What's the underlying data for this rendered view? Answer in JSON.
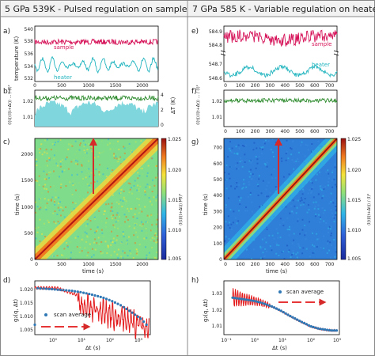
{
  "colors": {
    "sample": "#d6155a",
    "heater": "#23b5bf",
    "lineGreen": "#2e8b2e",
    "fillCyan": "#7fd6dc",
    "curve": "#e31a1c",
    "points": "#2f78b5",
    "arrow": "#d62a2a",
    "titleBg": "#f2f2f2",
    "axis": "#000000"
  },
  "columns": [
    {
      "title": "5 GPa 539K - Pulsed regulation on sample"
    },
    {
      "title": "7 GPa 585 K - Variable regulation on heater"
    }
  ],
  "panels": {
    "a": {
      "label": "a)",
      "ylabel": "temperature (K)",
      "xticks": [
        "0",
        "500",
        "1000",
        "1500",
        "2000"
      ],
      "yticks": [
        "532",
        "534",
        "536",
        "538",
        "540"
      ],
      "legend": [
        "sample",
        "heater"
      ]
    },
    "b": {
      "label": "b)",
      "ylabel_left": "⟨I(t)⟩⟨I(t+Δt)⟩ ... / ⟨I⟩²",
      "ylabel_right": "ΔT (K)",
      "yticks_left": [
        "1.01",
        "1.02"
      ],
      "yticks_right": [
        "0",
        "2",
        "4"
      ]
    },
    "c": {
      "label": "c)",
      "xlabel": "time (s)",
      "ylabel": "time (s)",
      "xticks": [
        "0",
        "500",
        "1000",
        "1500",
        "2000"
      ],
      "yticks": [
        "0",
        "500",
        "1000",
        "1500",
        "2000"
      ],
      "cbar_ticks": [
        "1.005",
        "1.010",
        "1.015",
        "1.020",
        "1.025"
      ],
      "cbar_label": "⟨I(t)I(t+Δt)⟩ / ⟨I⟩²"
    },
    "d": {
      "label": "d)",
      "xlabel": "Δt (s)",
      "ylabel": "g₂(q, Δt)",
      "yticks": [
        "1.005",
        "1.010",
        "1.015",
        "1.020"
      ],
      "xticks": [
        "10⁰",
        "10¹",
        "10²",
        "10³"
      ],
      "legend": "scan average"
    },
    "e": {
      "label": "e)",
      "yticks_top": [
        "584.8",
        "584.9"
      ],
      "yticks_bot": [
        "548.6",
        "548.7"
      ],
      "legend": [
        "sample",
        "heater"
      ],
      "xticks": [
        "0",
        "100",
        "200",
        "300",
        "400",
        "500",
        "600",
        "700"
      ]
    },
    "f": {
      "label": "f)",
      "ylabel": "⟨I(t)⟩⟨I(t+Δt)⟩ ... / ⟨I⟩²",
      "yticks": [
        "1.01",
        "1.02"
      ],
      "xticks": [
        "0",
        "100",
        "200",
        "300",
        "400",
        "500",
        "600",
        "700"
      ]
    },
    "g": {
      "label": "g)",
      "xlabel": "time (s)",
      "ylabel": "time (s)",
      "xticks": [
        "0",
        "100",
        "200",
        "300",
        "400",
        "500",
        "600",
        "700"
      ],
      "yticks": [
        "0",
        "100",
        "200",
        "300",
        "400",
        "500",
        "600",
        "700"
      ],
      "cbar_ticks": [
        "1.005",
        "1.010",
        "1.015",
        "1.020",
        "1.025"
      ],
      "cbar_label": "⟨I(t)I(t+Δt)⟩ / ⟨I⟩²"
    },
    "h": {
      "label": "h)",
      "xlabel": "Δt (s)",
      "ylabel": "g₂(q, Δt)",
      "yticks": [
        "1.01",
        "1.02",
        "1.03"
      ],
      "xticks": [
        "10⁻¹",
        "10⁰",
        "10¹",
        "10²",
        "10³"
      ],
      "legend": "scan average"
    }
  },
  "chart_data": [
    {
      "type": "line",
      "panel": "a",
      "xlim": [
        0,
        2300
      ],
      "ylim": [
        532,
        541
      ],
      "series": [
        {
          "name": "sample",
          "mean": 539.2,
          "amplitude": 0.6
        },
        {
          "name": "heater",
          "mean": 535.2,
          "amplitude": 1.6
        }
      ]
    },
    {
      "type": "area",
      "panel": "b",
      "xlim": [
        0,
        2300
      ],
      "ylim": [
        1.005,
        1.025
      ],
      "series": [
        {
          "name": "g2",
          "mean": 1.019
        },
        {
          "name": "ΔT",
          "ylim": [
            0,
            5
          ]
        }
      ]
    },
    {
      "type": "heatmap",
      "panel": "c",
      "xlim": [
        0,
        2300
      ],
      "ylim": [
        0,
        2300
      ],
      "clim": [
        1.005,
        1.025
      ],
      "arrow_at": 1300
    },
    {
      "type": "line",
      "panel": "d",
      "xscale": "log",
      "xlim": [
        0.3,
        2000
      ],
      "ylim": [
        1.004,
        1.023
      ],
      "series": [
        {
          "name": "scan average",
          "x": [
            0.3,
            0.5,
            1,
            2,
            5,
            10,
            20,
            50,
            100,
            200,
            500,
            1000,
            1500
          ],
          "y": [
            1.0205,
            1.0203,
            1.0201,
            1.0198,
            1.0195,
            1.019,
            1.0183,
            1.0172,
            1.016,
            1.0145,
            1.0118,
            1.0095,
            1.0075
          ]
        }
      ]
    },
    {
      "type": "line",
      "panel": "e",
      "xlim": [
        0,
        750
      ],
      "series": [
        {
          "name": "sample",
          "ylim": [
            584.7,
            585.0
          ]
        },
        {
          "name": "heater",
          "ylim": [
            548.55,
            548.75
          ]
        }
      ]
    },
    {
      "type": "line",
      "panel": "f",
      "xlim": [
        0,
        750
      ],
      "ylim": [
        1.005,
        1.025
      ],
      "series": [
        {
          "name": "g2",
          "mean": 1.02
        }
      ]
    },
    {
      "type": "heatmap",
      "panel": "g",
      "xlim": [
        0,
        750
      ],
      "ylim": [
        0,
        750
      ],
      "clim": [
        1.005,
        1.025
      ],
      "arrow_at": 370
    },
    {
      "type": "line",
      "panel": "h",
      "xscale": "log",
      "xlim": [
        0.1,
        1000
      ],
      "ylim": [
        1.003,
        1.035
      ],
      "series": [
        {
          "name": "scan average",
          "x": [
            0.2,
            0.3,
            0.5,
            1,
            2,
            5,
            10,
            20,
            50,
            100,
            200,
            500,
            800
          ],
          "y": [
            1.025,
            1.0245,
            1.024,
            1.0232,
            1.022,
            1.0195,
            1.017,
            1.014,
            1.0105,
            1.008,
            1.0065,
            1.0055,
            1.0055
          ]
        }
      ]
    }
  ]
}
